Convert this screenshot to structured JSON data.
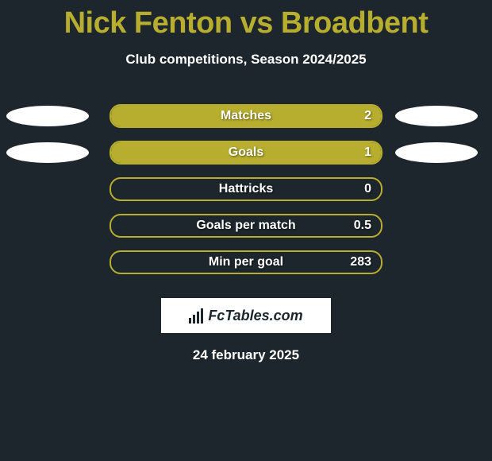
{
  "title": "Nick Fenton vs Broadbent",
  "subtitle": "Club competitions, Season 2024/2025",
  "colors": {
    "background": "#1c262c",
    "accent": "#b7ad2e",
    "text": "#ffffff",
    "ellipse": "#ffffff"
  },
  "stats": [
    {
      "label": "Matches",
      "value": "2",
      "fill_pct": 100,
      "left_ellipse": true,
      "right_ellipse": true
    },
    {
      "label": "Goals",
      "value": "1",
      "fill_pct": 100,
      "left_ellipse": true,
      "right_ellipse": true
    },
    {
      "label": "Hattricks",
      "value": "0",
      "fill_pct": 0,
      "left_ellipse": false,
      "right_ellipse": false
    },
    {
      "label": "Goals per match",
      "value": "0.5",
      "fill_pct": 0,
      "left_ellipse": false,
      "right_ellipse": false
    },
    {
      "label": "Min per goal",
      "value": "283",
      "fill_pct": 0,
      "left_ellipse": false,
      "right_ellipse": false
    }
  ],
  "logo_text": "FcTables.com",
  "footer_date": "24 february 2025"
}
